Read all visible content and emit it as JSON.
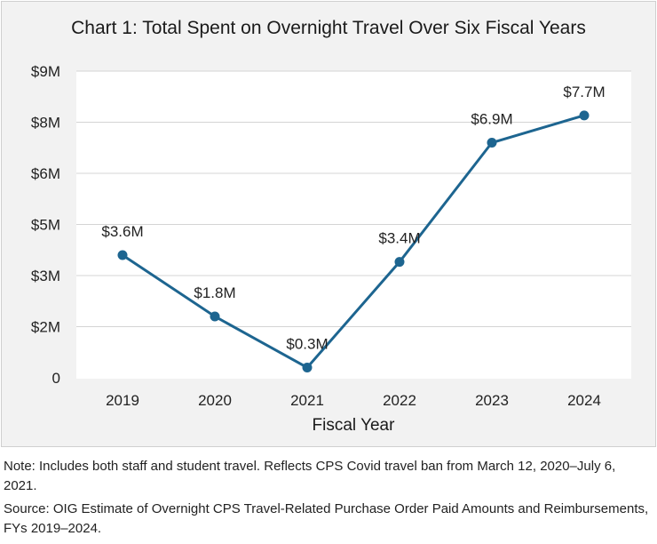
{
  "title": "Chart 1: Total Spent on Overnight Travel Over Six Fiscal Years",
  "chart_data": {
    "type": "line",
    "title": "Chart 1: Total Spent on Overnight Travel Over Six Fiscal Years",
    "xlabel": "Fiscal Year",
    "ylabel": "",
    "categories": [
      "2019",
      "2020",
      "2021",
      "2022",
      "2023",
      "2024"
    ],
    "values": [
      3.6,
      1.8,
      0.3,
      3.4,
      6.9,
      7.7
    ],
    "data_labels": [
      "$3.6M",
      "$1.8M",
      "$0.3M",
      "$3.4M",
      "$6.9M",
      "$7.7M"
    ],
    "y_ticks": [
      0,
      1.5,
      3,
      4.5,
      6,
      7.5,
      9
    ],
    "y_tick_labels": [
      "0",
      "$2M",
      "$3M",
      "$5M",
      "$6M",
      "$8M",
      "$9M"
    ],
    "ylim": [
      0,
      9
    ],
    "grid": true,
    "line_color": "#1d6590",
    "grid_color": "#d4d4d4"
  },
  "note": "Note: Includes both staff and student travel. Reflects CPS Covid travel ban from March 12, 2020–July 6, 2021.",
  "source": "Source: OIG Estimate of Overnight CPS Travel-Related Purchase Order Paid Amounts and Reimbursements, FYs 2019–2024."
}
